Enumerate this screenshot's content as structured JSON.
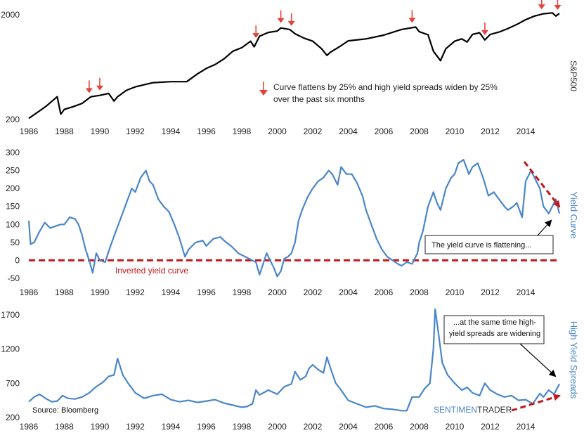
{
  "chart_data": [
    {
      "type": "line",
      "name": "S&P500",
      "ylabel": "S&P500",
      "yscale": "log",
      "ylim": [
        200,
        2100
      ],
      "xlim": [
        1986,
        2015.9
      ],
      "y_ticks": [
        200,
        2000
      ],
      "x_ticks": [
        1986,
        1988,
        1990,
        1992,
        1994,
        1996,
        1998,
        2000,
        2002,
        2004,
        2006,
        2008,
        2010,
        2012,
        2014
      ],
      "color": "#000000",
      "series": [
        {
          "x": [
            1986.0,
            1986.5,
            1987.0,
            1987.6,
            1987.8,
            1988.0,
            1988.5,
            1989.0,
            1989.5,
            1990.0,
            1990.5,
            1990.8,
            1991.0,
            1991.5,
            1992.0,
            1993.0,
            1994.0,
            1994.9,
            1995.5,
            1996.0,
            1996.5,
            1997.0,
            1997.5,
            1998.0,
            1998.5,
            1998.7,
            1999.0,
            1999.5,
            2000.0,
            2000.2,
            2000.7,
            2001.0,
            2001.5,
            2002.0,
            2002.5,
            2002.8,
            2003.0,
            2003.5,
            2004.0,
            2005.0,
            2006.0,
            2007.0,
            2007.5,
            2007.8,
            2008.0,
            2008.5,
            2008.8,
            2009.2,
            2009.5,
            2010.0,
            2010.4,
            2010.7,
            2011.0,
            2011.4,
            2011.7,
            2012.0,
            2012.5,
            2013.0,
            2013.5,
            2014.0,
            2014.5,
            2015.0,
            2015.5,
            2015.7,
            2015.9
          ],
          "y": [
            205,
            235,
            270,
            330,
            225,
            250,
            265,
            285,
            330,
            340,
            355,
            300,
            330,
            380,
            410,
            450,
            460,
            460,
            545,
            615,
            670,
            760,
            900,
            970,
            1120,
            990,
            1250,
            1360,
            1400,
            1500,
            1450,
            1320,
            1200,
            1120,
            950,
            820,
            880,
            990,
            1130,
            1180,
            1280,
            1450,
            1500,
            1530,
            1380,
            1290,
            900,
            730,
            950,
            1120,
            1180,
            1100,
            1300,
            1350,
            1150,
            1300,
            1370,
            1480,
            1620,
            1800,
            1950,
            2050,
            2090,
            1950,
            2060
          ]
        }
      ],
      "signal_markers_x": [
        1989.4,
        1990.0,
        1998.8,
        2000.2,
        2000.8,
        2007.6,
        2011.7,
        2014.9,
        2015.8
      ],
      "legend": "Curve flattens by 25% and high yield spreads widen by 25% over the past six months",
      "marker_color": "#e2443b"
    },
    {
      "type": "line",
      "name": "Yield Curve",
      "ylabel": "Yield Curve",
      "ylim": [
        -50,
        300
      ],
      "xlim": [
        1986,
        2015.9
      ],
      "y_ticks": [
        300,
        250,
        200,
        150,
        100,
        50,
        0,
        -50
      ],
      "x_ticks": [
        1986,
        1988,
        1990,
        1992,
        1994,
        1996,
        1998,
        2000,
        2002,
        2004,
        2006,
        2008,
        2010,
        2012,
        2014
      ],
      "color": "#4a86c8",
      "series": [
        {
          "x": [
            1986.0,
            1986.1,
            1986.3,
            1986.6,
            1986.9,
            1987.2,
            1987.5,
            1987.8,
            1988.0,
            1988.3,
            1988.6,
            1988.8,
            1989.0,
            1989.2,
            1989.4,
            1989.6,
            1989.8,
            1990.0,
            1990.3,
            1990.6,
            1990.9,
            1991.2,
            1991.5,
            1991.8,
            1992.0,
            1992.3,
            1992.6,
            1992.8,
            1993.0,
            1993.3,
            1993.6,
            1993.9,
            1994.2,
            1994.5,
            1994.8,
            1995.0,
            1995.4,
            1995.8,
            1996.0,
            1996.4,
            1996.8,
            1997.0,
            1997.4,
            1997.8,
            1998.0,
            1998.4,
            1998.8,
            1999.0,
            1999.4,
            1999.8,
            2000.0,
            2000.2,
            2000.4,
            2000.6,
            2000.8,
            2001.0,
            2001.2,
            2001.4,
            2001.7,
            2002.0,
            2002.3,
            2002.6,
            2002.9,
            2003.1,
            2003.4,
            2003.6,
            2003.9,
            2004.2,
            2004.5,
            2004.8,
            2005.0,
            2005.3,
            2005.6,
            2005.9,
            2006.2,
            2006.5,
            2006.8,
            2007.0,
            2007.3,
            2007.6,
            2007.9,
            2008.0,
            2008.2,
            2008.5,
            2008.8,
            2009.0,
            2009.2,
            2009.5,
            2009.8,
            2010.0,
            2010.2,
            2010.5,
            2010.8,
            2011.0,
            2011.3,
            2011.6,
            2011.9,
            2012.2,
            2012.5,
            2012.8,
            2013.0,
            2013.3,
            2013.5,
            2013.8,
            2014.0,
            2014.3,
            2014.5,
            2014.8,
            2015.0,
            2015.3,
            2015.5,
            2015.7,
            2015.9
          ],
          "y": [
            110,
            45,
            50,
            80,
            105,
            90,
            95,
            100,
            100,
            120,
            115,
            100,
            70,
            30,
            0,
            -35,
            20,
            0,
            -5,
            40,
            80,
            120,
            160,
            200,
            190,
            230,
            250,
            220,
            210,
            170,
            150,
            135,
            100,
            60,
            10,
            30,
            50,
            55,
            40,
            60,
            65,
            55,
            40,
            20,
            15,
            5,
            -5,
            -40,
            20,
            -20,
            -45,
            -30,
            5,
            10,
            20,
            50,
            110,
            140,
            175,
            200,
            220,
            230,
            250,
            240,
            210,
            260,
            240,
            240,
            215,
            180,
            140,
            100,
            60,
            30,
            10,
            0,
            -10,
            -15,
            -5,
            -10,
            20,
            50,
            80,
            150,
            190,
            160,
            140,
            200,
            230,
            240,
            270,
            280,
            240,
            260,
            270,
            230,
            180,
            190,
            170,
            150,
            140,
            150,
            160,
            120,
            220,
            250,
            230,
            200,
            150,
            130,
            150,
            170,
            130
          ]
        }
      ],
      "reference_line": {
        "y": 0,
        "label": "Inverted yield curve",
        "color": "#c0191d"
      },
      "annotation": "The yield curve is flattening...",
      "trend_arrow_color": "#c0191d"
    },
    {
      "type": "line",
      "name": "High Yield Spreads",
      "ylabel": "High Yield Spreads",
      "ylim": [
        200,
        1800
      ],
      "xlim": [
        1986,
        2015.9
      ],
      "y_ticks": [
        1700,
        1200,
        700,
        200
      ],
      "x_ticks": [
        1986,
        1988,
        1990,
        1992,
        1994,
        1996,
        1998,
        2000,
        2002,
        2004,
        2006,
        2008,
        2010,
        2012,
        2014
      ],
      "color": "#4a86c8",
      "series": [
        {
          "x": [
            1986.0,
            1986.3,
            1986.6,
            1987.0,
            1987.3,
            1987.6,
            1987.9,
            1988.2,
            1988.6,
            1989.0,
            1989.4,
            1989.8,
            1990.2,
            1990.5,
            1990.8,
            1991.0,
            1991.3,
            1991.6,
            1992.0,
            1992.5,
            1993.0,
            1993.5,
            1994.0,
            1994.5,
            1995.0,
            1995.5,
            1996.0,
            1996.5,
            1997.0,
            1997.5,
            1998.0,
            1998.3,
            1998.6,
            1998.8,
            1999.0,
            1999.5,
            2000.0,
            2000.4,
            2000.8,
            2001.0,
            2001.3,
            2001.6,
            2001.8,
            2002.0,
            2002.3,
            2002.6,
            2002.8,
            2003.0,
            2003.3,
            2003.6,
            2004.0,
            2004.5,
            2005.0,
            2005.5,
            2006.0,
            2006.5,
            2007.0,
            2007.3,
            2007.6,
            2008.0,
            2008.3,
            2008.6,
            2008.8,
            2008.9,
            2009.1,
            2009.3,
            2009.6,
            2010.0,
            2010.4,
            2010.7,
            2011.0,
            2011.4,
            2011.7,
            2012.0,
            2012.4,
            2012.8,
            2013.2,
            2013.6,
            2014.0,
            2014.4,
            2014.8,
            2015.0,
            2015.3,
            2015.6,
            2015.9
          ],
          "y": [
            430,
            500,
            540,
            470,
            430,
            440,
            520,
            480,
            470,
            500,
            560,
            650,
            720,
            800,
            820,
            1060,
            820,
            700,
            560,
            480,
            520,
            540,
            460,
            430,
            450,
            420,
            440,
            460,
            410,
            380,
            350,
            360,
            400,
            600,
            530,
            600,
            540,
            650,
            690,
            870,
            750,
            800,
            920,
            970,
            900,
            850,
            1080,
            920,
            700,
            600,
            450,
            400,
            350,
            370,
            330,
            320,
            300,
            300,
            500,
            500,
            620,
            700,
            1200,
            1780,
            1400,
            1000,
            820,
            700,
            600,
            640,
            560,
            520,
            700,
            600,
            540,
            500,
            520,
            450,
            460,
            400,
            550,
            500,
            600,
            540,
            690
          ]
        }
      ],
      "annotation": "...at the same time high-yield spreads are widening",
      "source": "Source: Bloomberg",
      "brand_a": "SENTIMEN",
      "brand_b": "TRADER",
      "trend_arrow_color": "#c0191d"
    }
  ]
}
